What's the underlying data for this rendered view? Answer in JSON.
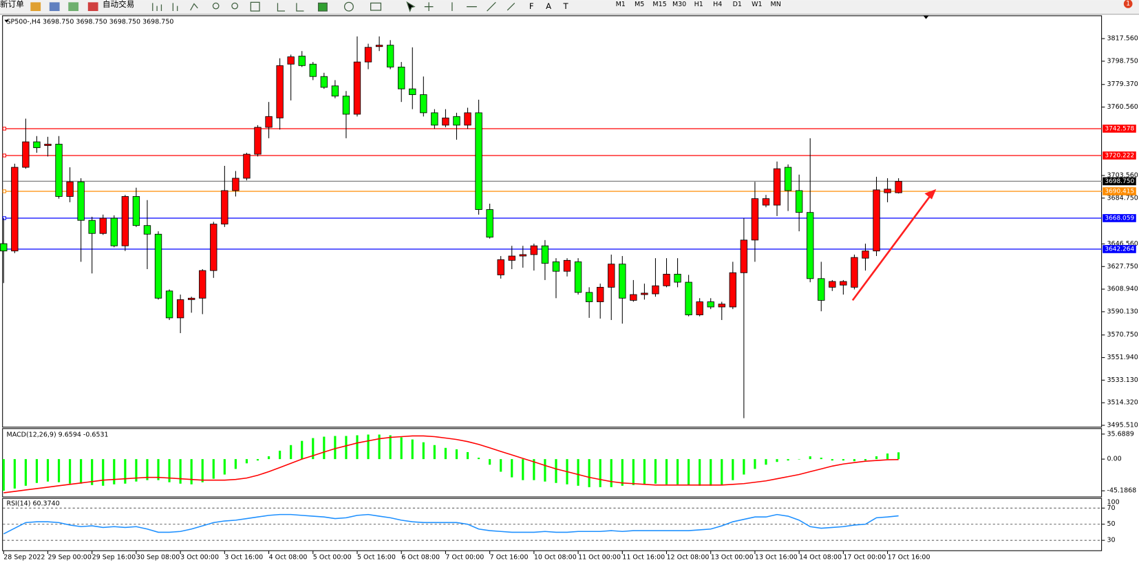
{
  "toolbar": {
    "new_order": "新订单",
    "auto_trading": "自动交易",
    "timeframes": [
      "M1",
      "M5",
      "M15",
      "M30",
      "H1",
      "H4",
      "D1",
      "W1",
      "MN"
    ],
    "badge": "1"
  },
  "chart_data": [
    {
      "type": "candlestick",
      "title": "SP500-,H4  3698.750 3698.750 3698.750 3698.750",
      "categories": [
        "28 Sep 2022",
        null,
        null,
        null,
        "29 Sep 00:00",
        null,
        null,
        null,
        "29 Sep 16:00",
        null,
        null,
        null,
        "30 Sep 08:00",
        null,
        null,
        null,
        "3 Oct 00:00",
        null,
        null,
        null,
        "3 Oct 16:00",
        null,
        null,
        null,
        "4 Oct 08:00",
        null,
        null,
        null,
        "5 Oct 00:00",
        null,
        null,
        null,
        "5 Oct 16:00",
        null,
        null,
        null,
        "6 Oct 08:00",
        null,
        null,
        null,
        "7 Oct 00:00",
        null,
        null,
        null,
        "7 Oct 16:00",
        null,
        null,
        null,
        "10 Oct 08:00",
        null,
        null,
        null,
        "11 Oct 00:00",
        null,
        null,
        null,
        "11 Oct 16:00",
        null,
        null,
        null,
        "12 Oct 08:00",
        null,
        null,
        null,
        "13 Oct 00:00",
        null,
        null,
        null,
        "13 Oct 16:00",
        null,
        null,
        null,
        "14 Oct 08:00",
        null,
        null,
        null,
        "17 Oct 00:00",
        null,
        null,
        null,
        "17 Oct 16:00",
        null
      ],
      "open": [
        3646.8,
        3640.7,
        3710.4,
        3731.6,
        3728.5,
        3729.7,
        3686.1,
        3698.3,
        3666.2,
        3655.3,
        3668.0,
        3645.0,
        3686.1,
        3661.9,
        3654.7,
        3607.4,
        3585.0,
        3600.2,
        3601.4,
        3624.4,
        3663.1,
        3691.0,
        3701.3,
        3721.3,
        3743.7,
        3751.5,
        3796.3,
        3803.0,
        3796.3,
        3786.0,
        3778.2,
        3769.7,
        3754.6,
        3798.1,
        3810.9,
        3812.1,
        3793.9,
        3775.7,
        3770.9,
        3755.8,
        3745.5,
        3752.7,
        3745.5,
        3755.8,
        3675.2,
        3620.8,
        3632.9,
        3636.5,
        3637.7,
        3645.0,
        3631.7,
        3623.8,
        3631.7,
        3606.2,
        3598.4,
        3610.5,
        3629.8,
        3599.6,
        3604.4,
        3605.0,
        3611.7,
        3621.4,
        3614.7,
        3587.5,
        3598.4,
        3594.1,
        3594.1,
        3622.6,
        3649.8,
        3678.9,
        3678.9,
        3710.4,
        3691.0,
        3672.8,
        3617.7,
        3610.5,
        3612.3,
        3610.5,
        3634.7,
        3640.7,
        3689.2,
        3689.2
      ],
      "high": [
        3668.0,
        3713.4,
        3750.9,
        3736.4,
        3735.8,
        3736.4,
        3710.4,
        3701.3,
        3669.2,
        3671.0,
        3670.4,
        3687.4,
        3693.4,
        3683.1,
        3657.1,
        3608.7,
        3604.4,
        3602.6,
        3625.6,
        3665.0,
        3711.6,
        3707.3,
        3722.5,
        3745.5,
        3764.8,
        3801.2,
        3804.2,
        3807.2,
        3798.1,
        3789.1,
        3783.0,
        3773.9,
        3819.4,
        3813.3,
        3819.4,
        3816.3,
        3798.1,
        3810.3,
        3786.0,
        3758.8,
        3758.8,
        3755.8,
        3760.0,
        3766.7,
        3680.1,
        3636.5,
        3645.0,
        3645.0,
        3646.8,
        3649.8,
        3634.7,
        3634.7,
        3634.7,
        3610.5,
        3613.5,
        3637.7,
        3636.5,
        3616.5,
        3613.5,
        3634.7,
        3634.7,
        3634.7,
        3620.8,
        3601.4,
        3601.4,
        3598.4,
        3631.7,
        3668.0,
        3698.3,
        3687.4,
        3715.2,
        3712.8,
        3704.3,
        3734.6,
        3631.7,
        3616.5,
        3616.5,
        3637.7,
        3646.8,
        3702.5,
        3701.3,
        3701.3
      ],
      "low": [
        3614.0,
        3638.9,
        3709.2,
        3722.5,
        3719.4,
        3684.3,
        3681.3,
        3631.7,
        3622.0,
        3654.1,
        3643.8,
        3640.7,
        3660.7,
        3625.6,
        3600.2,
        3583.2,
        3572.3,
        3589.3,
        3588.1,
        3618.3,
        3660.7,
        3686.1,
        3699.5,
        3719.4,
        3734.6,
        3741.8,
        3766.1,
        3793.9,
        3783.0,
        3775.7,
        3767.9,
        3734.6,
        3752.7,
        3792.1,
        3807.2,
        3792.1,
        3764.8,
        3758.8,
        3752.7,
        3742.4,
        3743.7,
        3733.4,
        3742.4,
        3671.0,
        3651.0,
        3617.7,
        3625.6,
        3626.8,
        3624.4,
        3616.5,
        3601.4,
        3619.5,
        3604.4,
        3585.0,
        3584.4,
        3583.2,
        3580.2,
        3598.4,
        3600.2,
        3602.6,
        3610.5,
        3610.5,
        3586.3,
        3586.3,
        3592.3,
        3583.2,
        3592.3,
        3501.5,
        3631.7,
        3677.1,
        3669.8,
        3674.0,
        3657.1,
        3614.7,
        3590.5,
        3607.4,
        3604.4,
        3608.7,
        3624.4,
        3636.5,
        3681.3,
        3688.6
      ],
      "close": [
        3640.7,
        3710.4,
        3731.6,
        3726.7,
        3729.7,
        3686.1,
        3698.3,
        3666.2,
        3655.3,
        3668.0,
        3645.0,
        3686.1,
        3661.9,
        3654.7,
        3601.4,
        3585.0,
        3600.2,
        3601.4,
        3624.4,
        3663.1,
        3691.0,
        3701.3,
        3721.3,
        3743.7,
        3752.7,
        3795.1,
        3802.4,
        3795.1,
        3786.0,
        3777.0,
        3769.7,
        3754.6,
        3798.1,
        3810.3,
        3812.1,
        3793.9,
        3775.7,
        3770.9,
        3755.8,
        3745.5,
        3751.5,
        3745.5,
        3755.8,
        3675.2,
        3652.2,
        3633.5,
        3636.5,
        3637.7,
        3645.0,
        3630.4,
        3623.8,
        3632.9,
        3606.2,
        3598.4,
        3610.5,
        3629.8,
        3601.4,
        3604.4,
        3605.6,
        3611.7,
        3621.4,
        3614.7,
        3587.5,
        3598.4,
        3594.1,
        3596.5,
        3622.6,
        3649.8,
        3684.3,
        3684.3,
        3709.2,
        3691.0,
        3672.8,
        3617.7,
        3599.6,
        3615.3,
        3615.3,
        3635.3,
        3640.7,
        3691.6,
        3692.2,
        3698.75
      ],
      "up_color": "#ff0000",
      "down_color": "#00ff00",
      "grid": false,
      "ylim": [
        3494.3,
        3836.3
      ],
      "yticks": [
        {
          "value": 3817.56,
          "label": "3817.560"
        },
        {
          "value": 3798.75,
          "label": "3798.750"
        },
        {
          "value": 3779.37,
          "label": "3779.370"
        },
        {
          "value": 3760.56,
          "label": "3760.560"
        },
        {
          "value": 3703.56,
          "label": "3703.560"
        },
        {
          "value": 3684.75,
          "label": "3684.750"
        },
        {
          "value": 3646.56,
          "label": "3646.560"
        },
        {
          "value": 3627.75,
          "label": "3627.750"
        },
        {
          "value": 3608.94,
          "label": "3608.940"
        },
        {
          "value": 3590.13,
          "label": "3590.130"
        },
        {
          "value": 3570.75,
          "label": "3570.750"
        },
        {
          "value": 3551.94,
          "label": "3551.940"
        },
        {
          "value": 3533.13,
          "label": "3533.130"
        },
        {
          "value": 3514.32,
          "label": "3514.320"
        },
        {
          "value": 3495.51,
          "label": "3495.510"
        }
      ],
      "hlines": [
        {
          "value": 3742.578,
          "color": "#ff0000"
        },
        {
          "value": 3720.222,
          "color": "#ff0000"
        },
        {
          "value": 3698.75,
          "label": "3698.750",
          "color": "#000000"
        },
        {
          "value": 3690.415,
          "color": "#ff8c00"
        },
        {
          "value": 3668.059,
          "color": "#0000ff"
        },
        {
          "value": 3642.264,
          "color": "#0000ff"
        }
      ]
    },
    {
      "type": "macd",
      "title": "MACD(12,26,9) 9.6594 -0.6531",
      "series": [
        {
          "color": "#00ff00",
          "values": [
            -45,
            -42,
            -38,
            -34,
            -32,
            -33,
            -35,
            -35,
            -37,
            -38,
            -36,
            -35,
            -32,
            -30,
            -30,
            -33,
            -35,
            -36,
            -33,
            -28,
            -22,
            -14,
            -6,
            -2,
            4,
            12,
            20,
            26,
            30,
            32,
            33,
            33,
            34,
            35,
            35,
            34,
            31,
            28,
            24,
            20,
            16,
            14,
            10,
            2,
            -8,
            -18,
            -26,
            -30,
            -30,
            -32,
            -34,
            -36,
            -38,
            -40,
            -40,
            -40,
            -38,
            -37,
            -36,
            -35,
            -36,
            -36,
            -37,
            -38,
            -38,
            -37,
            -30,
            -22,
            -14,
            -8,
            -4,
            -2,
            0,
            4,
            2,
            -2,
            -2,
            -3,
            -2,
            4,
            8,
            9.6594
          ]
        },
        {
          "color": "#ff0000",
          "values": [
            -48,
            -46,
            -44,
            -42,
            -40,
            -38,
            -36,
            -34,
            -32,
            -30,
            -29,
            -28,
            -27,
            -26,
            -26,
            -27,
            -28,
            -29,
            -30,
            -30,
            -30,
            -29,
            -27,
            -23,
            -18,
            -12,
            -6,
            0,
            5,
            10,
            15,
            19,
            23,
            26,
            29,
            31,
            32,
            33,
            33,
            32,
            30,
            28,
            25,
            21,
            16,
            11,
            6,
            1,
            -4,
            -9,
            -14,
            -18,
            -22,
            -26,
            -29,
            -32,
            -34,
            -35,
            -36,
            -37,
            -37,
            -37,
            -37,
            -37,
            -37,
            -37,
            -36,
            -35,
            -33,
            -31,
            -28,
            -25,
            -22,
            -18,
            -14,
            -10,
            -7,
            -5,
            -3,
            -2,
            -1,
            -0.6531
          ]
        }
      ],
      "ylim": [
        -53.4,
        43.0
      ],
      "yticks": [
        35.6889,
        {
          "value": 0,
          "label": "0.00"
        },
        -45.1868
      ]
    },
    {
      "type": "line",
      "title": "RSI(14) 60.3740",
      "series": [
        {
          "color": "#1e90ff",
          "values": [
            38,
            45,
            52,
            53,
            53,
            52,
            49,
            47,
            48,
            46,
            47,
            46,
            47,
            44,
            40,
            40,
            41,
            44,
            48,
            52,
            54,
            55,
            57,
            59,
            61,
            62,
            62,
            61,
            60,
            59,
            57,
            58,
            61,
            62,
            60,
            58,
            55,
            53,
            52,
            52,
            52,
            52,
            50,
            44,
            42,
            41,
            40,
            40,
            40,
            41,
            40,
            40,
            41,
            41,
            41,
            42,
            41,
            42,
            42,
            42,
            42,
            42,
            42,
            43,
            44,
            48,
            53,
            56,
            59,
            59,
            62,
            60,
            55,
            47,
            45,
            46,
            47,
            49,
            50,
            58,
            59,
            60.374
          ]
        }
      ],
      "ylim": [
        17.6,
        81.6
      ],
      "yticks": [
        70,
        50,
        30
      ],
      "scale_top": 100
    }
  ]
}
